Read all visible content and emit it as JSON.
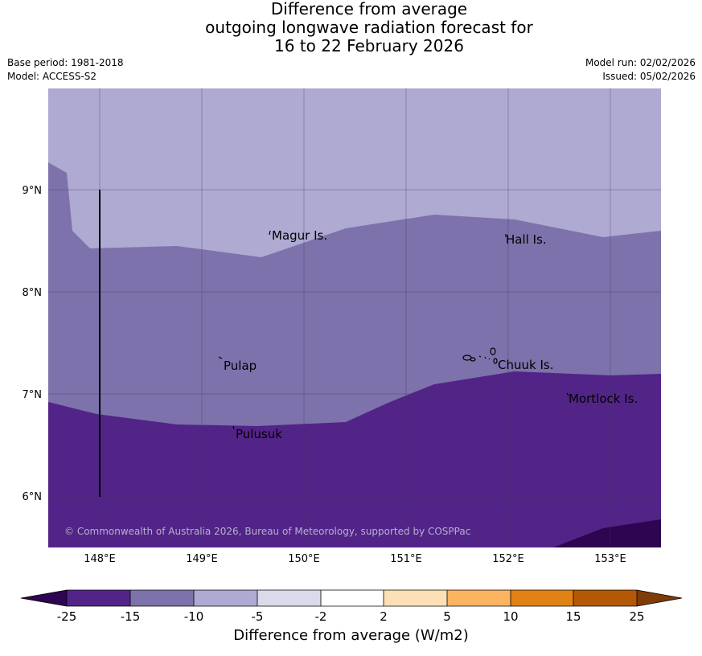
{
  "title": {
    "line1": "Difference from average",
    "line2": "outgoing longwave radiation forecast for",
    "line3": "16 to 22 February 2026"
  },
  "meta": {
    "base_period": "Base period: 1981-2018",
    "model": "Model: ACCESS-S2",
    "model_run": "Model run: 02/02/2026",
    "issued": "Issued: 05/02/2026"
  },
  "map": {
    "lat_labels": [
      "9°N",
      "8°N",
      "7°N",
      "6°N"
    ],
    "lon_labels": [
      "148°E",
      "149°E",
      "150°E",
      "151°E",
      "152°E",
      "153°E"
    ],
    "places": [
      "Magur Is.",
      "Hall Is.",
      "Pulap",
      "Chuuk Is.",
      "Mortlock Is.",
      "Pulusuk"
    ],
    "copyright": "© Commonwealth of Australia 2026, Bureau of Meteorology, supported by COSPPac",
    "colors": {
      "lt_-25": "#2d0550",
      "-25_-15": "#522487",
      "-15_-10": "#7d72ab",
      "-10_-5": "#aeaad2",
      "-5_-2": "#dadaeb",
      "-2_2": "#ffffff",
      "2_5": "#fde0b6",
      "5_10": "#fdb460",
      "10_15": "#e08214",
      "15_25": "#b35806",
      "gt_25": "#7f3b08"
    }
  },
  "colorbar": {
    "ticks": [
      "-25",
      "-15",
      "-10",
      "-5",
      "-2",
      "2",
      "5",
      "10",
      "15",
      "25"
    ],
    "title": "Difference from average (W/m2)"
  }
}
